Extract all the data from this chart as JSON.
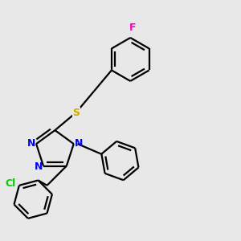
{
  "background_color": "#e8e8e8",
  "bond_color": "#000000",
  "n_color": "#0000ff",
  "s_color": "#ccaa00",
  "cl_color": "#00cc00",
  "f_color": "#ff00cc",
  "line_width": 1.6,
  "figsize": [
    3.0,
    3.0
  ],
  "dpi": 100,
  "xlim": [
    -2.8,
    3.2
  ],
  "ylim": [
    -3.0,
    3.0
  ]
}
